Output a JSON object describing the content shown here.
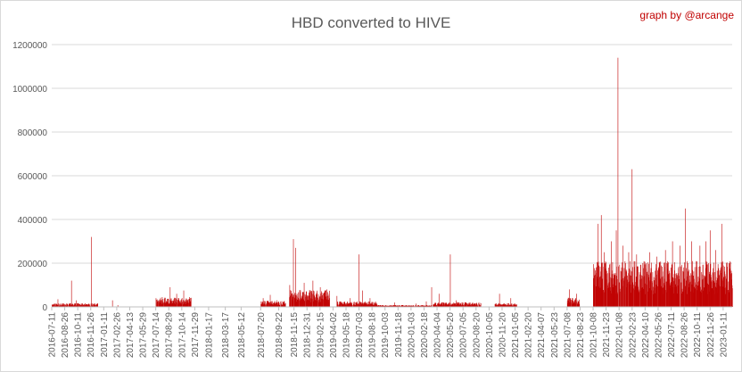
{
  "chart_data": {
    "type": "bar",
    "title": "HBD converted to HIVE",
    "credit": "graph by @arcange",
    "xlabel": "",
    "ylabel": "",
    "ylim": [
      0,
      1200000
    ],
    "yticks": [
      0,
      200000,
      400000,
      600000,
      800000,
      1000000,
      1200000
    ],
    "ytick_labels": [
      "0",
      "200000",
      "400000",
      "600000",
      "800000",
      "1000000",
      "1200000"
    ],
    "grid": "horizontal",
    "legend": "none",
    "bar_color": "#c00000",
    "x_start": "2016-07-11",
    "x_end": "2023-02-12",
    "xtick_labels": [
      "2016-07-11",
      "2016-08-26",
      "2016-10-11",
      "2016-11-26",
      "2017-01-11",
      "2017-02-26",
      "2017-04-13",
      "2017-05-29",
      "2017-07-14",
      "2017-08-29",
      "2017-10-14",
      "2017-11-29",
      "2018-01-17",
      "2018-03-17",
      "2018-05-12",
      "2018-07-20",
      "2018-09-22",
      "2018-11-15",
      "2018-12-31",
      "2019-02-15",
      "2019-04-02",
      "2019-05-18",
      "2019-07-03",
      "2019-08-18",
      "2019-10-03",
      "2019-11-18",
      "2020-01-03",
      "2020-02-18",
      "2020-04-04",
      "2020-05-20",
      "2020-07-05",
      "2020-08-20",
      "2020-10-05",
      "2020-11-20",
      "2021-01-05",
      "2021-02-20",
      "2021-04-07",
      "2021-05-23",
      "2021-07-08",
      "2021-08-23",
      "2021-10-08",
      "2021-11-23",
      "2022-01-08",
      "2022-02-23",
      "2022-04-10",
      "2022-05-26",
      "2022-07-11",
      "2022-08-26",
      "2022-10-11",
      "2022-11-26",
      "2023-01-11"
    ],
    "series": [
      {
        "segments": [
          {
            "start": "2016-07-11",
            "end": "2016-12-20",
            "level": 12000
          },
          {
            "start": "2017-07-14",
            "end": "2017-11-15",
            "level": 30000
          },
          {
            "start": "2018-07-20",
            "end": "2018-10-15",
            "level": 20000
          },
          {
            "start": "2018-10-28",
            "end": "2019-03-20",
            "level": 55000
          },
          {
            "start": "2019-04-15",
            "end": "2019-09-05",
            "level": 18000
          },
          {
            "start": "2019-09-05",
            "end": "2020-03-15",
            "level": 6000
          },
          {
            "start": "2020-03-20",
            "end": "2020-09-05",
            "level": 15000
          },
          {
            "start": "2020-10-25",
            "end": "2021-01-10",
            "level": 12000
          },
          {
            "start": "2021-07-08",
            "end": "2021-08-20",
            "level": 30000
          },
          {
            "start": "2021-10-08",
            "end": "2023-02-12",
            "level": 150000
          }
        ],
        "peaks": [
          {
            "date": "2016-07-20",
            "value": 10000
          },
          {
            "date": "2016-08-01",
            "value": 35000
          },
          {
            "date": "2016-09-18",
            "value": 120000
          },
          {
            "date": "2016-10-05",
            "value": 30000
          },
          {
            "date": "2016-11-28",
            "value": 320000
          },
          {
            "date": "2016-12-08",
            "value": 10000
          },
          {
            "date": "2017-02-10",
            "value": 30000
          },
          {
            "date": "2017-03-01",
            "value": 8000
          },
          {
            "date": "2017-08-05",
            "value": 45000
          },
          {
            "date": "2017-09-02",
            "value": 90000
          },
          {
            "date": "2017-09-25",
            "value": 60000
          },
          {
            "date": "2017-10-20",
            "value": 75000
          },
          {
            "date": "2017-11-10",
            "value": 45000
          },
          {
            "date": "2018-07-28",
            "value": 40000
          },
          {
            "date": "2018-08-22",
            "value": 55000
          },
          {
            "date": "2018-09-15",
            "value": 30000
          },
          {
            "date": "2018-10-30",
            "value": 100000
          },
          {
            "date": "2018-11-12",
            "value": 310000
          },
          {
            "date": "2018-11-20",
            "value": 270000
          },
          {
            "date": "2018-12-20",
            "value": 110000
          },
          {
            "date": "2019-01-20",
            "value": 120000
          },
          {
            "date": "2019-02-15",
            "value": 90000
          },
          {
            "date": "2019-03-10",
            "value": 80000
          },
          {
            "date": "2019-04-15",
            "value": 50000
          },
          {
            "date": "2019-06-01",
            "value": 40000
          },
          {
            "date": "2019-07-02",
            "value": 240000
          },
          {
            "date": "2019-07-15",
            "value": 75000
          },
          {
            "date": "2019-08-10",
            "value": 40000
          },
          {
            "date": "2019-11-05",
            "value": 20000
          },
          {
            "date": "2020-01-20",
            "value": 15000
          },
          {
            "date": "2020-02-25",
            "value": 25000
          },
          {
            "date": "2020-03-15",
            "value": 90000
          },
          {
            "date": "2020-04-10",
            "value": 60000
          },
          {
            "date": "2020-05-20",
            "value": 240000
          },
          {
            "date": "2020-06-10",
            "value": 30000
          },
          {
            "date": "2020-11-10",
            "value": 60000
          },
          {
            "date": "2020-12-20",
            "value": 40000
          },
          {
            "date": "2021-07-15",
            "value": 80000
          },
          {
            "date": "2021-08-10",
            "value": 60000
          },
          {
            "date": "2021-10-18",
            "value": 180000
          },
          {
            "date": "2021-10-25",
            "value": 380000
          },
          {
            "date": "2021-11-05",
            "value": 420000
          },
          {
            "date": "2021-11-15",
            "value": 250000
          },
          {
            "date": "2021-12-10",
            "value": 300000
          },
          {
            "date": "2021-12-28",
            "value": 350000
          },
          {
            "date": "2022-01-03",
            "value": 1140000
          },
          {
            "date": "2022-01-20",
            "value": 280000
          },
          {
            "date": "2022-02-10",
            "value": 250000
          },
          {
            "date": "2022-02-22",
            "value": 630000
          },
          {
            "date": "2022-03-10",
            "value": 240000
          },
          {
            "date": "2022-04-01",
            "value": 200000
          },
          {
            "date": "2022-04-25",
            "value": 250000
          },
          {
            "date": "2022-05-20",
            "value": 230000
          },
          {
            "date": "2022-06-20",
            "value": 260000
          },
          {
            "date": "2022-07-15",
            "value": 300000
          },
          {
            "date": "2022-08-10",
            "value": 280000
          },
          {
            "date": "2022-08-30",
            "value": 450000
          },
          {
            "date": "2022-09-20",
            "value": 300000
          },
          {
            "date": "2022-10-20",
            "value": 280000
          },
          {
            "date": "2022-11-10",
            "value": 300000
          },
          {
            "date": "2022-11-25",
            "value": 350000
          },
          {
            "date": "2022-12-15",
            "value": 260000
          },
          {
            "date": "2023-01-05",
            "value": 380000
          },
          {
            "date": "2023-01-20",
            "value": 150000
          },
          {
            "date": "2023-02-05",
            "value": 150000
          }
        ]
      }
    ]
  }
}
